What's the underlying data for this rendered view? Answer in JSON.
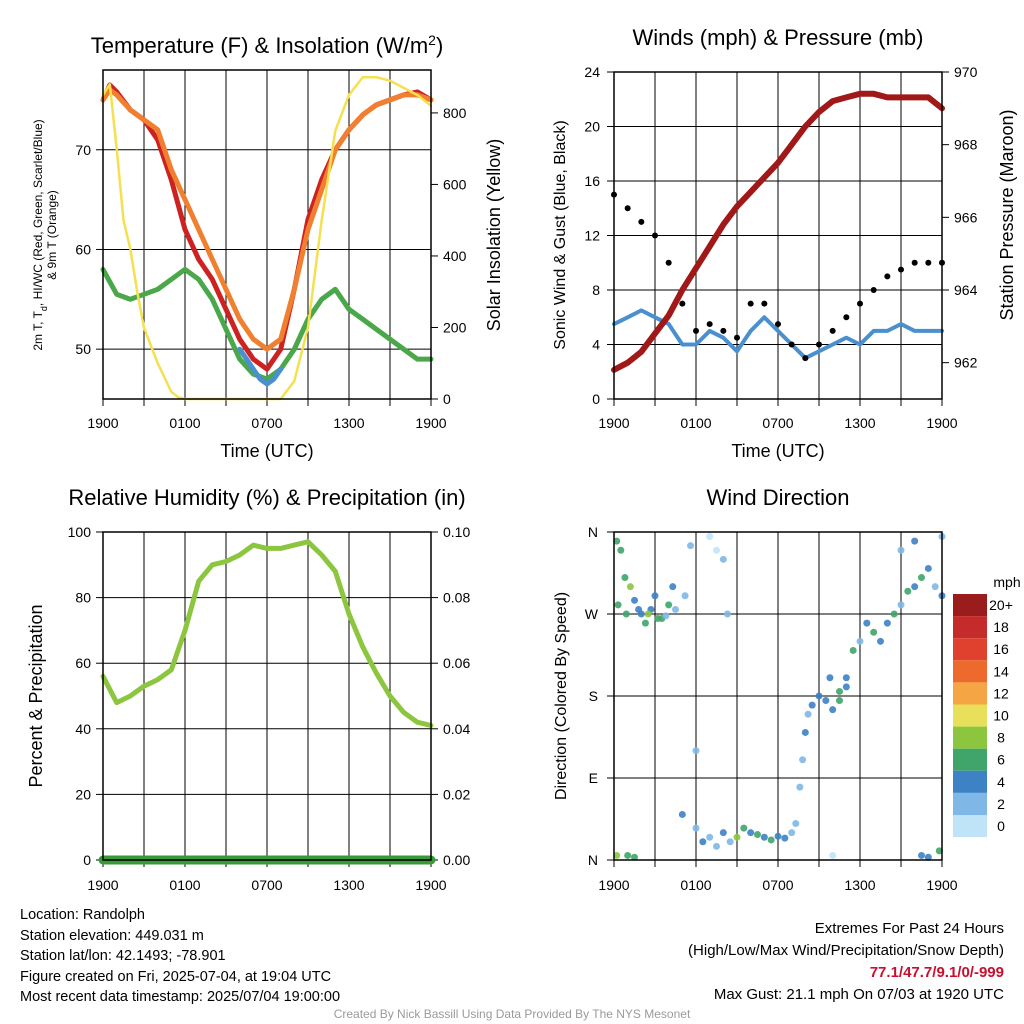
{
  "chart_data": [
    {
      "type": "line",
      "title": "Temperature (F) & Insolation (W/m²)",
      "title_main": "Temperature (F) & Insolation (W/m",
      "title_sup": "2",
      "title_end": ")",
      "xlabel": "Time (UTC)",
      "ylabel_line1": "2m T, T",
      "ylabel_sub": "d",
      "ylabel_line1_end": ", HI/WC (Red, Green, Scarlet/Blue)",
      "ylabel_line2": "& 9m T (Orange)",
      "y2label": "Solar Insolation (Yellow)",
      "x_ticks": [
        "1900",
        "0100",
        "0700",
        "1300",
        "1900"
      ],
      "ylim": [
        45,
        78
      ],
      "y_ticks": [
        50,
        60,
        70
      ],
      "y2lim": [
        0,
        920
      ],
      "y2_ticks": [
        0,
        200,
        400,
        600,
        800
      ],
      "series": [
        {
          "color": "#cc2222",
          "axis": "left",
          "x": [
            0,
            0.5,
            1,
            2,
            3,
            4,
            5,
            6,
            7,
            8,
            9,
            10,
            11,
            12,
            13,
            14,
            15,
            16,
            17,
            18,
            19,
            20,
            21,
            22,
            23,
            24
          ],
          "values": [
            75,
            76.5,
            75.8,
            74,
            73,
            71,
            67,
            62,
            59,
            57,
            54,
            51,
            49,
            48,
            50,
            56,
            63,
            67,
            70,
            72,
            73.5,
            74.5,
            75,
            75.5,
            75.8,
            75
          ]
        },
        {
          "color": "#f08030",
          "axis": "left",
          "x": [
            0,
            0.5,
            1,
            2,
            3,
            4,
            5,
            6,
            7,
            8,
            9,
            10,
            11,
            12,
            13,
            14,
            15,
            16,
            17,
            18,
            19,
            20,
            21,
            22,
            23,
            24
          ],
          "values": [
            75,
            76,
            75.5,
            74,
            73,
            72,
            68,
            65,
            62,
            59,
            56,
            53,
            51,
            50,
            51,
            56,
            62,
            66,
            70,
            72,
            73.5,
            74.5,
            75,
            75.5,
            75.5,
            75
          ]
        },
        {
          "color": "#4aa84a",
          "axis": "left",
          "x": [
            0,
            1,
            2,
            3,
            4,
            5,
            6,
            7,
            8,
            9,
            10,
            11,
            12,
            13,
            14,
            15,
            16,
            17,
            18,
            19,
            20,
            21,
            22,
            23,
            24
          ],
          "values": [
            58,
            55.5,
            55,
            55.5,
            56,
            57,
            58,
            57,
            55,
            52,
            49,
            47.5,
            47,
            48,
            50,
            53,
            55,
            56,
            54,
            53,
            52,
            51,
            50,
            49,
            49
          ]
        },
        {
          "color": "#4a90d0",
          "axis": "left",
          "x": [
            10,
            10.5,
            11,
            11.5,
            12,
            12.5,
            13
          ],
          "values": [
            50,
            49,
            48,
            47,
            46.5,
            47,
            48
          ]
        },
        {
          "color": "#f5e050",
          "axis": "right",
          "x": [
            0,
            0.5,
            1,
            1.5,
            2,
            2.5,
            3,
            3.5,
            4,
            4.5,
            5,
            5.5,
            6,
            7,
            8,
            9,
            10,
            11,
            12,
            13,
            14,
            15,
            16,
            17,
            18,
            19,
            20,
            21,
            22,
            23,
            24
          ],
          "values": [
            850,
            880,
            700,
            500,
            420,
            300,
            200,
            150,
            100,
            60,
            20,
            5,
            0,
            0,
            0,
            0,
            0,
            0,
            0,
            0,
            50,
            200,
            500,
            750,
            850,
            900,
            900,
            890,
            870,
            850,
            820
          ]
        }
      ]
    },
    {
      "type": "line",
      "title": "Winds (mph) & Pressure (mb)",
      "xlabel": "Time (UTC)",
      "ylabel": "Sonic Wind & Gust (Blue, Black)",
      "y2label": "Station Pressure (Maroon)",
      "x_ticks": [
        "1900",
        "0100",
        "0700",
        "1300",
        "1900"
      ],
      "ylim": [
        0,
        24
      ],
      "y_ticks": [
        0,
        4,
        8,
        12,
        16,
        20,
        24
      ],
      "y2lim": [
        961,
        970
      ],
      "y2_ticks": [
        962,
        964,
        966,
        968,
        970
      ],
      "series": [
        {
          "color": "#4a90d0",
          "axis": "left",
          "name": "Sonic Wind",
          "x": [
            0,
            1,
            2,
            3,
            4,
            5,
            6,
            7,
            8,
            9,
            10,
            11,
            12,
            13,
            14,
            15,
            16,
            17,
            18,
            19,
            20,
            21,
            22,
            23,
            24
          ],
          "values": [
            5.5,
            6,
            6.5,
            6,
            5.5,
            4,
            4,
            5,
            4.5,
            3.5,
            5,
            6,
            5,
            4,
            3,
            3.5,
            4,
            4.5,
            4,
            5,
            5,
            5.5,
            5,
            5,
            5
          ]
        },
        {
          "color": "#000000",
          "axis": "left",
          "name": "Gust",
          "x": [
            0,
            1,
            2,
            3,
            4,
            5,
            6,
            7,
            8,
            9,
            10,
            11,
            12,
            13,
            14,
            15,
            16,
            17,
            18,
            19,
            20,
            21,
            22,
            23,
            24
          ],
          "values": [
            15,
            14,
            13,
            12,
            10,
            7,
            5,
            5.5,
            5,
            4.5,
            7,
            7,
            5.5,
            4,
            3,
            4,
            5,
            6,
            7,
            8,
            9,
            9.5,
            10,
            10,
            10
          ]
        },
        {
          "color": "#a01818",
          "axis": "right",
          "name": "Pressure",
          "x": [
            0,
            1,
            2,
            3,
            4,
            5,
            6,
            7,
            8,
            9,
            10,
            11,
            12,
            13,
            14,
            15,
            16,
            17,
            18,
            19,
            20,
            21,
            22,
            23,
            24
          ],
          "values": [
            961.8,
            962,
            962.3,
            962.8,
            963.3,
            964,
            964.6,
            965.2,
            965.8,
            966.3,
            966.7,
            967.1,
            967.5,
            968,
            968.5,
            968.9,
            969.2,
            969.3,
            969.4,
            969.4,
            969.3,
            969.3,
            969.3,
            969.3,
            969
          ]
        }
      ]
    },
    {
      "type": "line",
      "title": "Relative Humidity (%) & Precipitation (in)",
      "ylabel": "Percent & Precipitation",
      "x_ticks": [
        "1900",
        "0100",
        "0700",
        "1300",
        "1900"
      ],
      "ylim": [
        0,
        100
      ],
      "y_ticks": [
        0,
        20,
        40,
        60,
        80,
        100
      ],
      "y2lim": [
        0,
        0.1
      ],
      "y2_ticks": [
        "0.00",
        "0.02",
        "0.04",
        "0.06",
        "0.08",
        "0.10"
      ],
      "series": [
        {
          "color": "#8cc63f",
          "axis": "left",
          "name": "Relative Humidity",
          "x": [
            0,
            1,
            2,
            3,
            4,
            5,
            6,
            7,
            8,
            9,
            10,
            11,
            12,
            13,
            14,
            15,
            16,
            17,
            18,
            19,
            20,
            21,
            22,
            23,
            24
          ],
          "values": [
            56,
            48,
            50,
            53,
            55,
            58,
            70,
            85,
            90,
            91,
            93,
            96,
            95,
            95,
            96,
            97,
            93,
            88,
            75,
            65,
            57,
            50,
            45,
            42,
            41
          ]
        },
        {
          "color": "#3a9a3a",
          "axis": "right",
          "name": "Precipitation",
          "x": [
            0,
            24
          ],
          "values": [
            0,
            0
          ]
        }
      ]
    },
    {
      "type": "scatter",
      "title": "Wind Direction",
      "ylabel": "Direction (Colored By Speed)",
      "x_ticks": [
        "1900",
        "0100",
        "0700",
        "1300",
        "1900"
      ],
      "y_tick_labels": [
        "N",
        "E",
        "S",
        "W",
        "N"
      ],
      "ylim": [
        0,
        360
      ],
      "legend_title": "mph",
      "legend_labels": [
        "20+",
        "18",
        "16",
        "14",
        "12",
        "10",
        "8",
        "6",
        "4",
        "2",
        "0"
      ],
      "legend_colors": [
        "#9b1c1c",
        "#c62b2b",
        "#e0402e",
        "#ee6a2c",
        "#f6a545",
        "#e8e05a",
        "#8cc63f",
        "#3fa56a",
        "#3c82c4",
        "#7fb8e6",
        "#bfe4f8"
      ],
      "points": [
        [
          0.2,
          350,
          6
        ],
        [
          0.5,
          340,
          5
        ],
        [
          0.8,
          310,
          6
        ],
        [
          1.2,
          300,
          8
        ],
        [
          1.5,
          285,
          3
        ],
        [
          2.0,
          270,
          4
        ],
        [
          2.3,
          260,
          6
        ],
        [
          2.7,
          275,
          3
        ],
        [
          3.0,
          290,
          4
        ],
        [
          3.5,
          265,
          6
        ],
        [
          4.0,
          280,
          5
        ],
        [
          4.3,
          300,
          3
        ],
        [
          0.3,
          280,
          6
        ],
        [
          0.9,
          270,
          5
        ],
        [
          1.8,
          275,
          4
        ],
        [
          2.5,
          270,
          8
        ],
        [
          3.2,
          265,
          6
        ],
        [
          3.8,
          268,
          2
        ],
        [
          4.5,
          275,
          2
        ],
        [
          5.2,
          290,
          1
        ],
        [
          5.6,
          345,
          1
        ],
        [
          7.0,
          355,
          0
        ],
        [
          7.5,
          340,
          0
        ],
        [
          8.0,
          330,
          1
        ],
        [
          8.3,
          270,
          1
        ],
        [
          0.2,
          5,
          8
        ],
        [
          1.0,
          5,
          6
        ],
        [
          1.5,
          3,
          5
        ],
        [
          5.0,
          50,
          3
        ],
        [
          6.0,
          35,
          2
        ],
        [
          6.5,
          20,
          3
        ],
        [
          7.0,
          25,
          1
        ],
        [
          7.5,
          15,
          2
        ],
        [
          8.0,
          30,
          4
        ],
        [
          8.5,
          20,
          2
        ],
        [
          9.0,
          25,
          8
        ],
        [
          9.5,
          35,
          6
        ],
        [
          10.0,
          30,
          4
        ],
        [
          10.5,
          28,
          5
        ],
        [
          11.0,
          25,
          4
        ],
        [
          11.5,
          22,
          6
        ],
        [
          12.0,
          26,
          3
        ],
        [
          12.5,
          24,
          4
        ],
        [
          13.0,
          30,
          2
        ],
        [
          13.3,
          40,
          2
        ],
        [
          13.6,
          80,
          2
        ],
        [
          6.0,
          120,
          1
        ],
        [
          16.0,
          5,
          0
        ],
        [
          13.8,
          110,
          2
        ],
        [
          14.0,
          140,
          3
        ],
        [
          14.5,
          170,
          3
        ],
        [
          15.0,
          180,
          4
        ],
        [
          15.5,
          175,
          3
        ],
        [
          16.0,
          165,
          4
        ],
        [
          16.5,
          185,
          6
        ],
        [
          17.0,
          200,
          3
        ],
        [
          17.5,
          230,
          5
        ],
        [
          18.0,
          240,
          2
        ],
        [
          18.5,
          260,
          4
        ],
        [
          19.0,
          250,
          6
        ],
        [
          19.5,
          240,
          4
        ],
        [
          20.0,
          260,
          3
        ],
        [
          20.5,
          270,
          5
        ],
        [
          21.0,
          280,
          2
        ],
        [
          21.5,
          295,
          6
        ],
        [
          22.0,
          300,
          4
        ],
        [
          22.5,
          310,
          5
        ],
        [
          23.0,
          320,
          3
        ],
        [
          23.5,
          300,
          2
        ],
        [
          24.0,
          290,
          4
        ],
        [
          22.5,
          5,
          3
        ],
        [
          23.0,
          3,
          4
        ],
        [
          23.8,
          10,
          6
        ],
        [
          24.0,
          355,
          2
        ],
        [
          22.0,
          350,
          3
        ],
        [
          21.0,
          340,
          1
        ],
        [
          17.0,
          190,
          3
        ],
        [
          16.5,
          175,
          5
        ],
        [
          15.8,
          200,
          4
        ],
        [
          14.2,
          160,
          2
        ]
      ]
    }
  ],
  "info": {
    "location": "Location: Randolph",
    "elevation": "Station elevation: 449.031 m",
    "latlon": "Station lat/lon: 42.1493; -78.901",
    "created": "Figure created on Fri, 2025-07-04, at 19:04 UTC",
    "recent": "Most recent data timestamp: 2025/07/04 19:00:00"
  },
  "extremes": {
    "title": "Extremes For Past 24 Hours",
    "subtitle": "(High/Low/Max Wind/Precipitation/Snow Depth)",
    "values": "77.1/47.7/9.1/0/-999",
    "gust": "Max Gust: 21.1 mph On 07/03 at 1920 UTC"
  },
  "credit": "Created By Nick Bassill Using Data Provided By The NYS Mesonet"
}
